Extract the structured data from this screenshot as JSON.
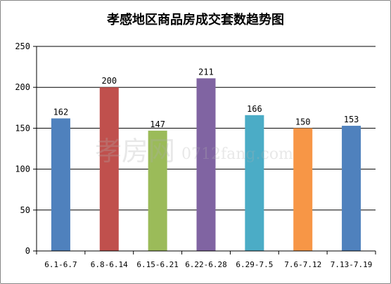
{
  "chart_data": {
    "type": "bar",
    "title": "孝感地区商品房成交套数趋势图",
    "categories": [
      "6.1-6.7",
      "6.8-6.14",
      "6.15-6.21",
      "6.22-6.28",
      "6.29-7.5",
      "7.6-7.12",
      "7.13-7.19"
    ],
    "values": [
      162,
      200,
      147,
      211,
      166,
      150,
      153
    ],
    "bar_colors": [
      "#4F81BD",
      "#C0504D",
      "#9BBB59",
      "#8064A2",
      "#4BACC6",
      "#F79646",
      "#4F81BD"
    ],
    "ylim": [
      0,
      250
    ],
    "yticks": [
      0,
      50,
      100,
      150,
      200,
      250
    ],
    "xlabel": "",
    "ylabel": "",
    "grid": true,
    "legend": "none"
  },
  "watermark": {
    "chars": "孝房网",
    "domain": "0712fang.com"
  }
}
